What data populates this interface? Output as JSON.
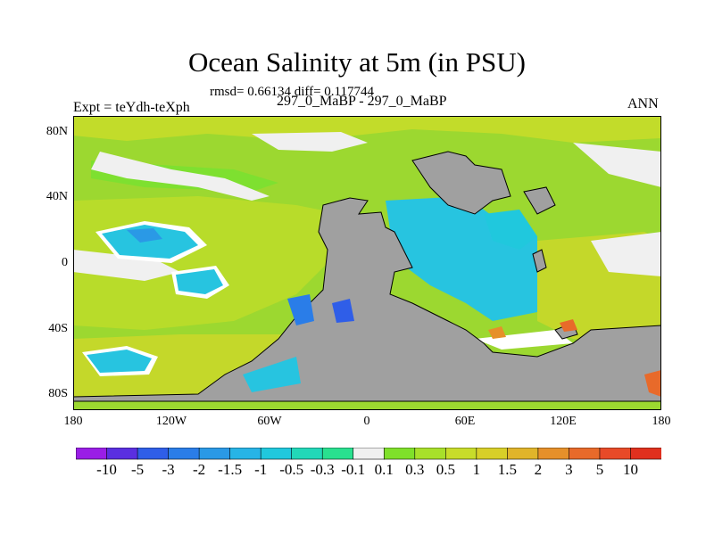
{
  "title": "Ocean Salinity at 5m (in PSU)",
  "stats": "rmsd= 0.66134 diff= 0.117744",
  "left_label": "Expt = teYdh-teXph",
  "center_label": "297_0_MaBP - 297_0_MaBP",
  "right_label": "ANN",
  "axes": {
    "lat_ticks": [
      "80N",
      "40N",
      "0",
      "40S",
      "80S"
    ],
    "lon_ticks": [
      "180",
      "120W",
      "60W",
      "0",
      "60E",
      "120E",
      "180"
    ]
  },
  "colorbar": {
    "labels": [
      "-10",
      "-5",
      "-3",
      "-2",
      "-1.5",
      "-1",
      "-0.5",
      "-0.3",
      "-0.1",
      "0.1",
      "0.3",
      "0.5",
      "1",
      "1.5",
      "2",
      "3",
      "5",
      "10"
    ],
    "colors": [
      "#9a1ee6",
      "#5a2fe0",
      "#2f5ee8",
      "#2a7de8",
      "#2a99e6",
      "#27b4e6",
      "#20c8dd",
      "#22d8b8",
      "#29e08f",
      "#f0f0f0",
      "#7fe02a",
      "#a8e02a",
      "#c8dc2a",
      "#d8cf28",
      "#e0b42a",
      "#e6902a",
      "#e86a2a",
      "#e84a28",
      "#e0301e"
    ]
  },
  "colors": {
    "land": "#a0a0a0",
    "ocean_base": "#9cd830"
  }
}
